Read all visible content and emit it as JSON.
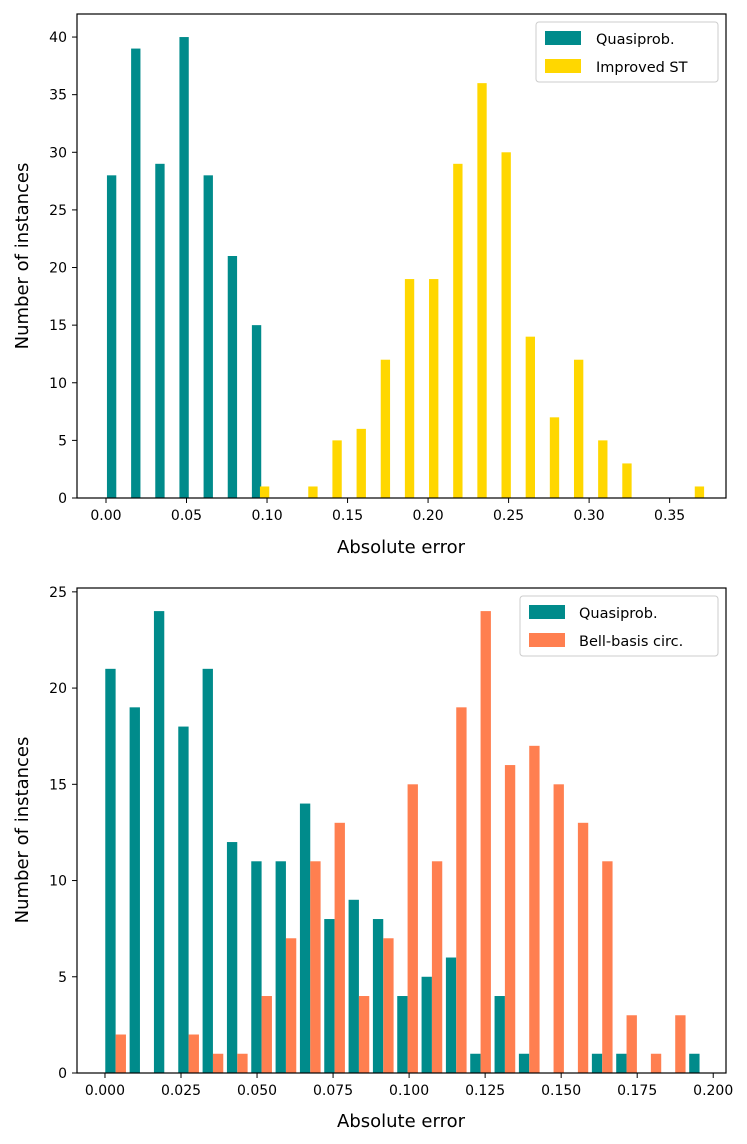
{
  "chart_data": [
    {
      "type": "bar",
      "title": "",
      "xlabel": "Absolute error",
      "ylabel": "Number of instances",
      "xlim": [
        -0.018,
        0.385
      ],
      "ylim": [
        0,
        42
      ],
      "xticks": [
        0.0,
        0.05,
        0.1,
        0.15,
        0.2,
        0.25,
        0.3,
        0.35
      ],
      "xtick_labels": [
        "0.00",
        "0.05",
        "0.10",
        "0.15",
        "0.20",
        "0.25",
        "0.30",
        "0.35"
      ],
      "yticks": [
        0,
        5,
        10,
        15,
        20,
        25,
        30,
        35,
        40
      ],
      "ytick_labels": [
        "0",
        "5",
        "10",
        "15",
        "20",
        "25",
        "30",
        "35",
        "40"
      ],
      "bar_width": 0.0058,
      "legend_position": "upper right",
      "series": [
        {
          "name": "Quasiprob.",
          "color": "#008b8b",
          "x": [
            0.0035,
            0.0185,
            0.0335,
            0.0485,
            0.0635,
            0.0785,
            0.0935
          ],
          "values": [
            28,
            39,
            29,
            40,
            28,
            21,
            15
          ]
        },
        {
          "name": "Improved ST",
          "color": "#ffd700",
          "x": [
            0.0985,
            0.1285,
            0.1435,
            0.1585,
            0.1735,
            0.1885,
            0.2035,
            0.2185,
            0.2335,
            0.2485,
            0.2635,
            0.2785,
            0.2935,
            0.3085,
            0.3235,
            0.3685
          ],
          "values": [
            1,
            1,
            5,
            6,
            12,
            19,
            19,
            29,
            36,
            30,
            14,
            7,
            12,
            5,
            3,
            1
          ]
        }
      ]
    },
    {
      "type": "bar",
      "title": "",
      "xlabel": "Absolute error",
      "ylabel": "Number of instances",
      "xlim": [
        -0.0092,
        0.2042
      ],
      "ylim": [
        0,
        25.2
      ],
      "xticks": [
        0.0,
        0.025,
        0.05,
        0.075,
        0.1,
        0.125,
        0.15,
        0.175,
        0.2
      ],
      "xtick_labels": [
        "0.000",
        "0.025",
        "0.050",
        "0.075",
        "0.100",
        "0.125",
        "0.150",
        "0.175",
        "0.200"
      ],
      "yticks": [
        0,
        5,
        10,
        15,
        20,
        25
      ],
      "ytick_labels": [
        "0",
        "5",
        "10",
        "15",
        "20",
        "25"
      ],
      "bar_width": 0.0034,
      "legend_position": "upper right",
      "series": [
        {
          "name": "Quasiprob.",
          "color": "#008b8b",
          "x": [
            0.0018,
            0.0098,
            0.0178,
            0.0258,
            0.0338,
            0.0418,
            0.0498,
            0.0578,
            0.0658,
            0.0738,
            0.0818,
            0.0898,
            0.0978,
            0.1058,
            0.1138,
            0.1218,
            0.1298,
            0.1378,
            0.1618,
            0.1698,
            0.1938
          ],
          "values": [
            21,
            19,
            24,
            18,
            21,
            12,
            11,
            11,
            14,
            8,
            9,
            8,
            4,
            5,
            6,
            1,
            4,
            1,
            1,
            1,
            1
          ]
        },
        {
          "name": "Bell-basis circ.",
          "color": "#ff7f50",
          "x": [
            0.0052,
            0.0292,
            0.0372,
            0.0452,
            0.0532,
            0.0612,
            0.0692,
            0.0772,
            0.0852,
            0.0932,
            0.1012,
            0.1092,
            0.1172,
            0.1252,
            0.1332,
            0.1412,
            0.1492,
            0.1572,
            0.1652,
            0.1732,
            0.1812,
            0.1892
          ],
          "values": [
            2,
            2,
            1,
            1,
            4,
            7,
            11,
            13,
            4,
            7,
            15,
            11,
            19,
            24,
            16,
            17,
            15,
            13,
            11,
            3,
            1,
            3
          ]
        }
      ]
    }
  ]
}
